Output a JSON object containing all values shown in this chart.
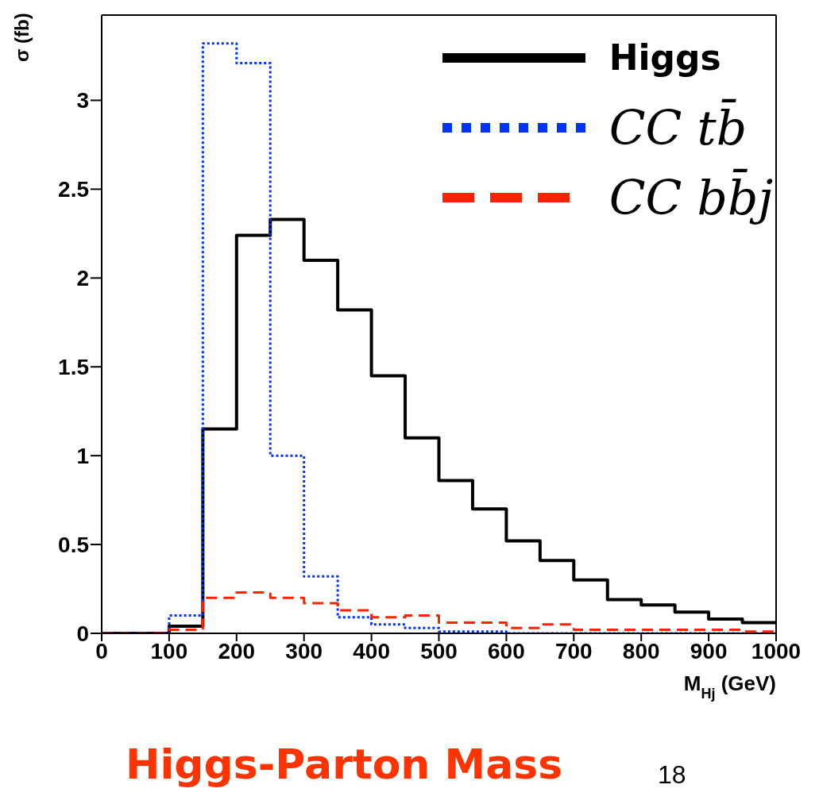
{
  "chart_data": {
    "type": "histogram",
    "title": "Higgs-Parton Mass",
    "xlabel": "M$_{Hj}$ (GeV)",
    "ylabel": "σ (fb)",
    "annotations": [
      "18"
    ],
    "bins": [
      0,
      50,
      100,
      150,
      200,
      250,
      300,
      350,
      400,
      450,
      500,
      550,
      600,
      650,
      700,
      750,
      800,
      850,
      900,
      950,
      1000
    ],
    "series": [
      {
        "name": "Higgs",
        "color": "#000000",
        "line_style": "solid",
        "values": [
          0,
          0,
          0.04,
          1.15,
          2.24,
          2.33,
          2.1,
          1.82,
          1.45,
          1.1,
          0.86,
          0.7,
          0.52,
          0.41,
          0.3,
          0.19,
          0.16,
          0.12,
          0.08,
          0.06
        ]
      },
      {
        "name": "CC tb̄",
        "color": "#0033ff",
        "line_style": "dotted",
        "values": [
          0,
          0,
          0.1,
          3.32,
          3.21,
          1.0,
          0.32,
          0.09,
          0.05,
          0.03,
          0.01,
          0.01,
          0,
          0,
          0,
          0,
          0,
          0,
          0,
          0
        ]
      },
      {
        "name": "CC bb̄j",
        "color": "#ff2200",
        "line_style": "dashed",
        "values": [
          0,
          0,
          0.02,
          0.2,
          0.23,
          0.2,
          0.17,
          0.13,
          0.09,
          0.1,
          0.06,
          0.06,
          0.03,
          0.05,
          0.02,
          0.02,
          0.02,
          0.02,
          0.02,
          0.01
        ]
      }
    ],
    "xlim": [
      0,
      1000
    ],
    "xticks": [
      0,
      100,
      200,
      300,
      400,
      500,
      600,
      700,
      800,
      900,
      1000
    ],
    "ylim": [
      0,
      3.48
    ],
    "yticks": [
      0,
      0.5,
      1,
      1.5,
      2,
      2.5,
      3
    ],
    "legend": "top right",
    "grid": false
  }
}
